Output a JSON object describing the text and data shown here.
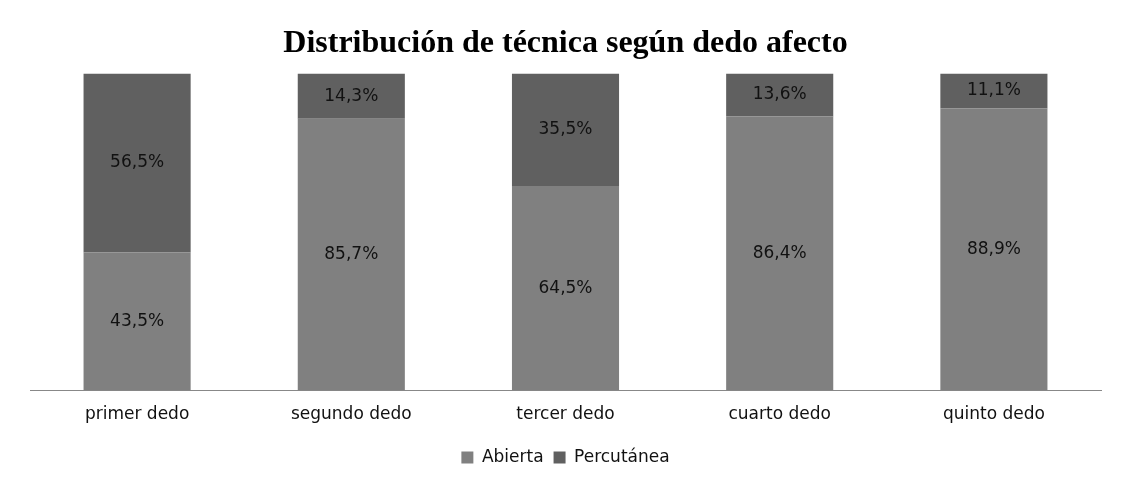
{
  "chart_data": {
    "type": "bar",
    "title": "Distribución de técnica según dedo afecto",
    "stacked": true,
    "categories": [
      "primer dedo",
      "segundo dedo",
      "tercer dedo",
      "cuarto dedo",
      "quinto dedo"
    ],
    "series": [
      {
        "name": "Abierta",
        "color": "#808080",
        "values": [
          43.5,
          85.7,
          64.5,
          86.4,
          88.9
        ],
        "value_labels": [
          "43,5%",
          "85,7%",
          "64,5%",
          "86,4%",
          "88,9%"
        ]
      },
      {
        "name": "Percutánea",
        "color": "#606060",
        "values": [
          56.5,
          14.3,
          35.5,
          13.6,
          11.1
        ],
        "value_labels": [
          "56,5%",
          "14,3%",
          "35,5%",
          "13,6%",
          "11,1%"
        ]
      }
    ],
    "ylim": [
      0,
      100
    ],
    "tick_labels": "x",
    "grid": false,
    "legend": "bottom"
  }
}
